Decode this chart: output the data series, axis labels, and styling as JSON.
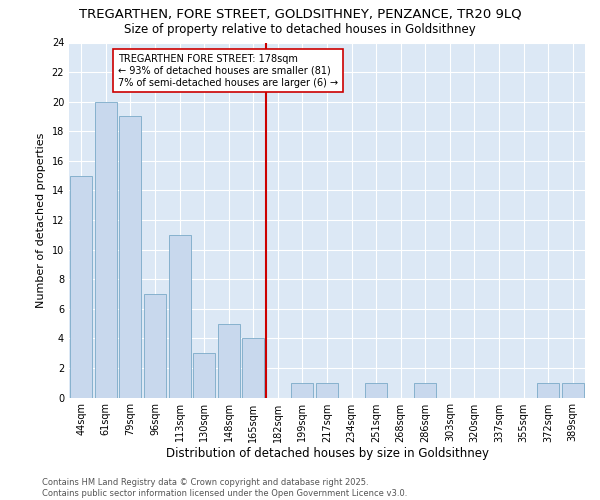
{
  "title": "TREGARTHEN, FORE STREET, GOLDSITHNEY, PENZANCE, TR20 9LQ",
  "subtitle": "Size of property relative to detached houses in Goldsithney",
  "xlabel": "Distribution of detached houses by size in Goldsithney",
  "ylabel": "Number of detached properties",
  "bar_color": "#c8d8ed",
  "bar_edge_color": "#7aaac8",
  "bg_color": "#dce8f5",
  "grid_color": "#ffffff",
  "categories": [
    "44sqm",
    "61sqm",
    "79sqm",
    "96sqm",
    "113sqm",
    "130sqm",
    "148sqm",
    "165sqm",
    "182sqm",
    "199sqm",
    "217sqm",
    "234sqm",
    "251sqm",
    "268sqm",
    "286sqm",
    "303sqm",
    "320sqm",
    "337sqm",
    "355sqm",
    "372sqm",
    "389sqm"
  ],
  "values": [
    15,
    20,
    19,
    7,
    11,
    3,
    5,
    4,
    0,
    1,
    1,
    0,
    1,
    0,
    1,
    0,
    0,
    0,
    0,
    1,
    1
  ],
  "vline_x_index": 8,
  "vline_color": "#cc0000",
  "annotation_text": "TREGARTHEN FORE STREET: 178sqm\n← 93% of detached houses are smaller (81)\n7% of semi-detached houses are larger (6) →",
  "annotation_box_color": "#ffffff",
  "annotation_box_edge": "#cc0000",
  "ylim": [
    0,
    24
  ],
  "yticks": [
    0,
    2,
    4,
    6,
    8,
    10,
    12,
    14,
    16,
    18,
    20,
    22,
    24
  ],
  "footer_text": "Contains HM Land Registry data © Crown copyright and database right 2025.\nContains public sector information licensed under the Open Government Licence v3.0.",
  "title_fontsize": 9.5,
  "subtitle_fontsize": 8.5,
  "xlabel_fontsize": 8.5,
  "ylabel_fontsize": 8,
  "tick_fontsize": 7,
  "annotation_fontsize": 7,
  "footer_fontsize": 6
}
